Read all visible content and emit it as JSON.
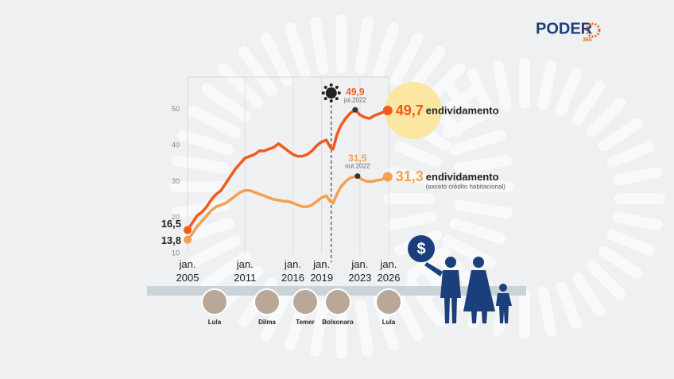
{
  "logo": {
    "name": "PODER",
    "number": "360"
  },
  "icon": "$",
  "presidents": [
    "Lula",
    "Dilma",
    "Temer",
    "Bolsonaro",
    "Lula"
  ],
  "chart_data": {
    "type": "line",
    "xlim": [
      2005,
      2026
    ],
    "xticks": [
      {
        "value": 2005,
        "label": "jan. 2005"
      },
      {
        "value": 2011,
        "label": "jan. 2011"
      },
      {
        "value": 2016,
        "label": "jan. 2016"
      },
      {
        "value": 2019,
        "label": "jan. 2019"
      },
      {
        "value": 2023,
        "label": "jan. 2023"
      },
      {
        "value": 2026,
        "label": "jan. 2026"
      }
    ],
    "ylim": [
      10,
      59
    ],
    "yticks": [
      10,
      20,
      30,
      40,
      50
    ],
    "grid": true,
    "covid_x": 2020,
    "series": [
      {
        "name": "endividamento",
        "color": "#f05a1a",
        "x": [
          2005,
          2005.5,
          2006,
          2006.5,
          2007,
          2007.5,
          2008,
          2008.5,
          2009,
          2009.5,
          2010,
          2010.5,
          2011,
          2011.5,
          2012,
          2012.5,
          2013,
          2013.5,
          2014,
          2014.5,
          2015,
          2015.5,
          2016,
          2016.5,
          2017,
          2017.5,
          2018,
          2018.5,
          2019,
          2019.5,
          2019.9,
          2020.2,
          2020.6,
          2021,
          2021.5,
          2022,
          2022.5,
          2023,
          2023.5,
          2024,
          2024.5,
          2025,
          2025.9
        ],
        "values": [
          16.5,
          18.5,
          20.5,
          21.5,
          23,
          25,
          26.5,
          27.5,
          29.5,
          31.5,
          33.5,
          35,
          36.5,
          37,
          37.5,
          38.5,
          38.5,
          39,
          39.5,
          40.5,
          39.5,
          38.5,
          37.5,
          37,
          37,
          37.5,
          38.5,
          40,
          41,
          41.5,
          39.5,
          39,
          43,
          45.5,
          47.5,
          49,
          49.9,
          48.5,
          47.8,
          47.5,
          48.3,
          48.8,
          49.7
        ],
        "value_labels": [
          "16,5",
          null,
          null,
          null,
          null,
          null,
          null,
          null,
          null,
          null,
          null,
          null,
          null,
          null,
          null,
          null,
          null,
          null,
          null,
          null,
          null,
          null,
          null,
          null,
          null,
          null,
          null,
          null,
          null,
          null,
          null,
          null,
          null,
          null,
          null,
          null,
          "49,9",
          null,
          null,
          null,
          null,
          null,
          "49,7"
        ],
        "peak_date": "jul.2022"
      },
      {
        "name": "endividamento",
        "note": "(exceto crédito habitacional)",
        "color": "#f5a04e",
        "x": [
          2005,
          2005.5,
          2006,
          2006.5,
          2007,
          2007.5,
          2008,
          2008.5,
          2009,
          2009.5,
          2010,
          2010.5,
          2011,
          2011.5,
          2012,
          2012.5,
          2013,
          2013.5,
          2014,
          2014.5,
          2015,
          2015.5,
          2016,
          2016.5,
          2017,
          2017.5,
          2018,
          2018.5,
          2019,
          2019.5,
          2019.9,
          2020.2,
          2020.6,
          2021,
          2021.5,
          2022,
          2022.75,
          2023.25,
          2023.75,
          2024.25,
          2024.75,
          2025.25,
          2025.9
        ],
        "values": [
          13.8,
          15.5,
          17.5,
          19,
          20.5,
          22,
          23,
          23.5,
          24,
          25,
          26,
          27,
          27.5,
          27.5,
          27,
          26.5,
          26,
          25.5,
          25,
          24.8,
          24.5,
          24.5,
          24,
          23.5,
          23,
          23,
          23.5,
          24.5,
          25.5,
          26,
          24.5,
          24,
          26.5,
          28.5,
          30,
          31,
          31.5,
          30.5,
          30,
          30,
          30.3,
          30.5,
          31.3
        ],
        "value_labels": [
          "13,8",
          null,
          null,
          null,
          null,
          null,
          null,
          null,
          null,
          null,
          null,
          null,
          null,
          null,
          null,
          null,
          null,
          null,
          null,
          null,
          null,
          null,
          null,
          null,
          null,
          null,
          null,
          null,
          null,
          null,
          null,
          null,
          null,
          null,
          null,
          null,
          "31,5",
          null,
          null,
          null,
          null,
          null,
          "31,3"
        ],
        "peak_date": "out.2022"
      }
    ]
  }
}
